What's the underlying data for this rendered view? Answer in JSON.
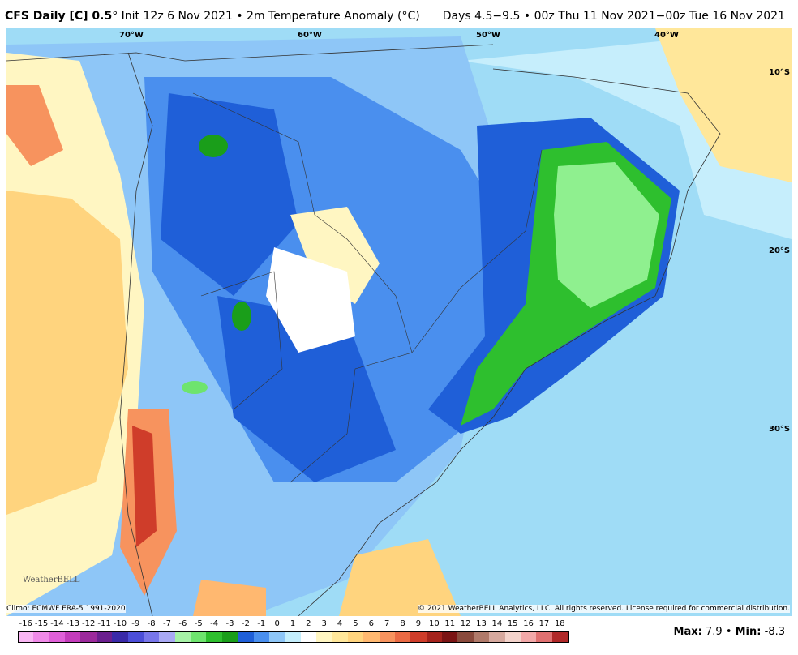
{
  "header": {
    "title_bold": "CFS Daily [C] 0.5",
    "title_rest": "° Init 12z 6 Nov 2021 • 2m Temperature Anomaly (°C)",
    "period": "Days 4.5−9.5 • 00z Thu 11 Nov 2021−00z Tue 16 Nov 2021"
  },
  "map": {
    "lon_labels": [
      "70°W",
      "60°W",
      "50°W",
      "40°W"
    ],
    "lat_labels": [
      "10°S",
      "20°S",
      "30°S"
    ],
    "climo": "Climo: ECMWF ERA-5 1991-2020",
    "copyright": "© 2021 WeatherBELL Analytics, LLC. All rights reserved. License required for commercial distribution.",
    "logo": "WeatherBELL"
  },
  "colorbar": {
    "ticks": [
      -16,
      -15,
      -14,
      -13,
      -12,
      -11,
      -10,
      -9,
      -8,
      -7,
      -6,
      -5,
      -4,
      -3,
      -2,
      -1,
      0,
      1,
      2,
      3,
      4,
      5,
      6,
      7,
      8,
      9,
      10,
      11,
      12,
      13,
      14,
      15,
      16,
      17,
      18
    ],
    "colors": [
      "#f9b6f3",
      "#f08ae8",
      "#e060d8",
      "#c43cbb",
      "#9c2a9c",
      "#6b1f8f",
      "#3a2aa8",
      "#4c4ed8",
      "#7876ea",
      "#a9a9f4",
      "#a6f2a6",
      "#6ee46e",
      "#2ebf2e",
      "#1a9e1a",
      "#1f5fd8",
      "#4a8fee",
      "#8ec6f7",
      "#c4eefc",
      "#ffffff",
      "#fff6c2",
      "#ffe79a",
      "#ffd47e",
      "#ffb870",
      "#f7935e",
      "#ea6a44",
      "#cf3d2a",
      "#a5231c",
      "#7b1414",
      "#8a4a3c",
      "#b07a6a",
      "#d6a99e",
      "#f3d3cb",
      "#f2a8a8",
      "#e07070",
      "#b02828"
    ]
  },
  "stats": {
    "max_label": "Max:",
    "max": 7.9,
    "sep": "•",
    "min_label": "Min:",
    "min": -8.3
  }
}
